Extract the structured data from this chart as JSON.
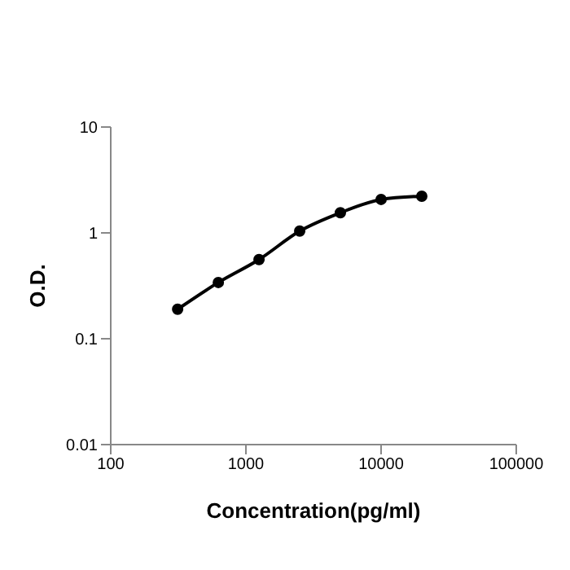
{
  "chart_data": {
    "type": "line",
    "xlabel": "Concentration(pg/ml)",
    "ylabel": "O.D.",
    "log": "xy",
    "x": [
      312.5,
      625,
      1250,
      2500,
      5000,
      10000,
      20000
    ],
    "series": [
      {
        "color": "#000000",
        "values": [
          0.19,
          0.34,
          0.56,
          1.04,
          1.55,
          2.07,
          2.22
        ]
      }
    ],
    "xlim": [
      100,
      100000
    ],
    "xticks": [
      100,
      1000,
      10000,
      100000
    ],
    "ylim": [
      0.01,
      10
    ],
    "yticks": [
      0.01,
      0.1,
      1,
      10
    ],
    "grid": false,
    "legend": false,
    "marker": "circle",
    "line_style": "solid"
  }
}
